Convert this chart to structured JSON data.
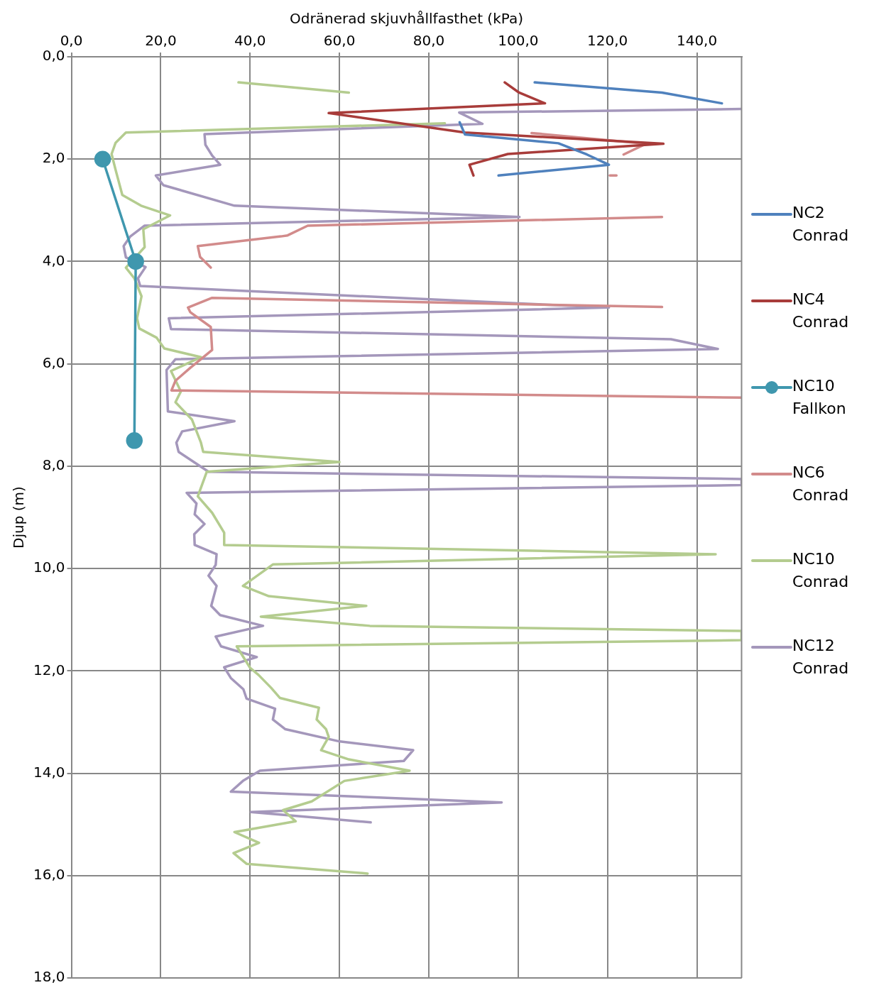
{
  "chart_data": {
    "type": "line",
    "xlabel": "Odränerad skjuvhållfasthet (kPa)",
    "ylabel": "Djup (m)",
    "xlim": [
      0,
      150
    ],
    "ylim": [
      18,
      0
    ],
    "xticks": [
      {
        "value": 0,
        "label": "0,0"
      },
      {
        "value": 20,
        "label": "20,0"
      },
      {
        "value": 40,
        "label": "40,0"
      },
      {
        "value": 60,
        "label": "60,0"
      },
      {
        "value": 80,
        "label": "80,0"
      },
      {
        "value": 100,
        "label": "100,0"
      },
      {
        "value": 120,
        "label": "120,0"
      },
      {
        "value": 140,
        "label": "140,0"
      }
    ],
    "yticks": [
      {
        "value": 0,
        "label": "0,0"
      },
      {
        "value": 2,
        "label": "2,0"
      },
      {
        "value": 4,
        "label": "4,0"
      },
      {
        "value": 6,
        "label": "6,0"
      },
      {
        "value": 8,
        "label": "8,0"
      },
      {
        "value": 10,
        "label": "10,0"
      },
      {
        "value": 12,
        "label": "12,0"
      },
      {
        "value": 14,
        "label": "14,0"
      },
      {
        "value": 16,
        "label": "16,0"
      },
      {
        "value": 18,
        "label": "18,0"
      }
    ],
    "grid": true,
    "legend": "right",
    "marker": "none",
    "line_style": "solid",
    "series": [
      {
        "name": "NC2 Conrad",
        "color": "#4f81bd",
        "x": [
          103.7,
          132.2,
          145.6,
          null,
          86.9,
          88.1,
          109.0,
          115.4,
          120.3,
          95.6
        ],
        "values": [
          0.5,
          0.7,
          0.91,
          null,
          1.28,
          1.52,
          1.69,
          1.91,
          2.11,
          2.32
        ]
      },
      {
        "name": "NC4 Conrad",
        "color": "#a83c3a",
        "x": [
          97.0,
          100.2,
          106.0,
          57.6,
          88.1,
          132.5,
          97.7,
          89.1,
          90.0
        ],
        "values": [
          0.5,
          0.7,
          0.91,
          1.1,
          1.48,
          1.7,
          1.9,
          2.11,
          2.32
        ]
      },
      {
        "name": "NC10 Fallkon",
        "color": "#3f97ae",
        "marker": "circle",
        "x": [
          7.0,
          14.4,
          14.1
        ],
        "values": [
          2.0,
          4.0,
          7.5
        ]
      },
      {
        "name": "NC6 Conrad",
        "color": "#d28b8b",
        "x": [
          103.0,
          128.6,
          123.6,
          null,
          120.5,
          122.0,
          null,
          132.2,
          52.9,
          48.4,
          46.9,
          28.3,
          28.8,
          31.2,
          null,
          132.2,
          31.5,
          26.1,
          26.6,
          31.2,
          31.5,
          26.6,
          23.3,
          22.4,
          150
        ],
        "values": [
          1.49,
          1.7,
          1.91,
          null,
          2.32,
          2.32,
          null,
          3.13,
          3.3,
          3.49,
          3.51,
          3.7,
          3.91,
          4.12,
          null,
          4.89,
          4.71,
          4.9,
          4.99,
          5.28,
          5.73,
          6.08,
          6.33,
          6.52,
          6.66
        ]
      },
      {
        "name": "NC10 Conrad",
        "color": "#b4cc8f",
        "x": [
          37.4,
          62.1,
          null,
          83.6,
          12.2,
          9.9,
          9.0,
          9.9,
          11.4,
          15.6,
          22.1,
          16.1,
          16.4,
          12.2,
          14.1,
          15.7,
          14.7,
          15.2,
          19.1,
          20.8,
          29.0,
          22.3,
          24.5,
          23.3,
          27.0,
          29.0,
          29.5,
          60.0,
          30.3,
          28.3,
          31.5,
          34.2,
          34.2,
          144.2,
          45.1,
          38.4,
          44.2,
          66.0,
          42.4,
          66.8,
          150,
          150,
          37.0,
          40.0,
          41.9,
          44.7,
          46.7,
          55.4,
          54.9,
          57.0,
          57.6,
          55.9,
          62.1,
          75.7,
          61.1,
          53.8,
          47.4,
          50.2,
          36.5,
          42.0,
          36.3,
          39.2,
          66.3
        ],
        "values": [
          0.5,
          0.7,
          null,
          1.3,
          1.48,
          1.68,
          1.9,
          2.21,
          2.7,
          2.91,
          3.1,
          3.37,
          3.72,
          4.12,
          4.33,
          4.68,
          5.11,
          5.31,
          5.49,
          5.7,
          5.87,
          6.14,
          6.54,
          6.75,
          7.09,
          7.54,
          7.72,
          7.92,
          8.11,
          8.59,
          8.91,
          9.3,
          9.54,
          9.72,
          9.92,
          10.34,
          10.54,
          10.73,
          10.94,
          11.12,
          11.22,
          11.4,
          11.52,
          11.94,
          12.08,
          12.33,
          12.53,
          12.72,
          12.95,
          13.14,
          13.29,
          13.55,
          13.73,
          13.95,
          14.15,
          14.55,
          14.72,
          14.94,
          15.15,
          15.36,
          15.56,
          15.77,
          15.96
        ]
      },
      {
        "name": "NC12 Conrad",
        "color": "#a497bb",
        "x": [
          150,
          86.8,
          92.0,
          29.8,
          30.0,
          31.5,
          33.3,
          18.9,
          20.6,
          36.5,
          100.3,
          16.4,
          13.2,
          11.7,
          12.2,
          16.6,
          14.9,
          15.4,
          120.3,
          21.8,
          22.3,
          134.2,
          144.7,
          23.3,
          21.3,
          21.6,
          36.5,
          24.8,
          23.5,
          24.0,
          30.7,
          150,
          150,
          25.8,
          28.0,
          27.6,
          29.8,
          27.5,
          27.6,
          32.5,
          32.3,
          30.7,
          32.5,
          31.3,
          33.3,
          42.9,
          32.3,
          33.5,
          41.5,
          34.2,
          35.7,
          38.5,
          39.2,
          45.6,
          45.1,
          47.9,
          60.1,
          76.5,
          74.4,
          42.2,
          38.4,
          35.7,
          96.3,
          40.2,
          67.0
        ],
        "values": [
          1.02,
          1.09,
          1.31,
          1.51,
          1.72,
          1.93,
          2.11,
          2.32,
          2.51,
          2.91,
          3.13,
          3.3,
          3.51,
          3.7,
          3.92,
          4.11,
          4.33,
          4.48,
          4.9,
          5.11,
          5.32,
          5.52,
          5.71,
          5.91,
          6.12,
          6.93,
          7.12,
          7.32,
          7.54,
          7.72,
          8.11,
          8.25,
          8.37,
          8.52,
          8.73,
          8.94,
          9.13,
          9.33,
          9.54,
          9.72,
          9.93,
          10.14,
          10.34,
          10.73,
          10.91,
          11.12,
          11.33,
          11.52,
          11.73,
          11.93,
          12.14,
          12.36,
          12.54,
          12.74,
          12.95,
          13.14,
          13.38,
          13.55,
          13.76,
          13.95,
          14.15,
          14.36,
          14.57,
          14.76,
          14.96
        ]
      }
    ]
  }
}
